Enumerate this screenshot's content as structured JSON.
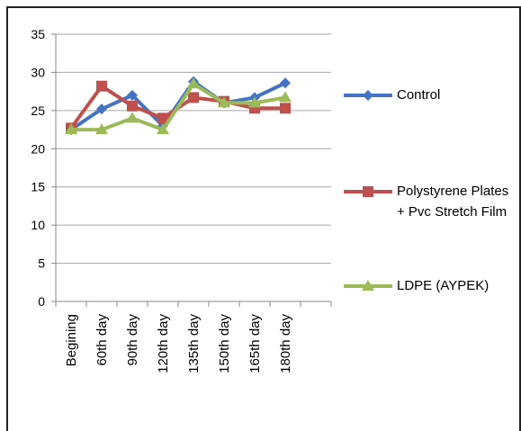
{
  "chart_data": {
    "type": "line",
    "categories": [
      "Begining",
      "60th day",
      "90th day",
      "120th day",
      "135th day",
      "150th day",
      "165th day",
      "180th day",
      null
    ],
    "series": [
      {
        "name": "Control",
        "color": "#4472c4",
        "marker": "diamond",
        "values": [
          22.5,
          25.2,
          27,
          23,
          28.8,
          26,
          26.7,
          28.6,
          null
        ]
      },
      {
        "name": "Polystyrene Plates + Pvc Stretch Film",
        "color": "#c0504d",
        "marker": "square",
        "values": [
          22.7,
          28.2,
          25.6,
          24,
          26.7,
          26.2,
          25.3,
          25.3,
          null
        ]
      },
      {
        "name": "LDPE (AYPEK)",
        "color": "#9bbb59",
        "marker": "triangle",
        "values": [
          22.5,
          22.5,
          24,
          22.5,
          28.5,
          26,
          26,
          26.7,
          null
        ]
      }
    ],
    "ylim": [
      0,
      35
    ],
    "yticks": [
      0,
      5,
      10,
      15,
      20,
      25,
      30,
      35
    ],
    "grid": true,
    "legend": "right"
  }
}
